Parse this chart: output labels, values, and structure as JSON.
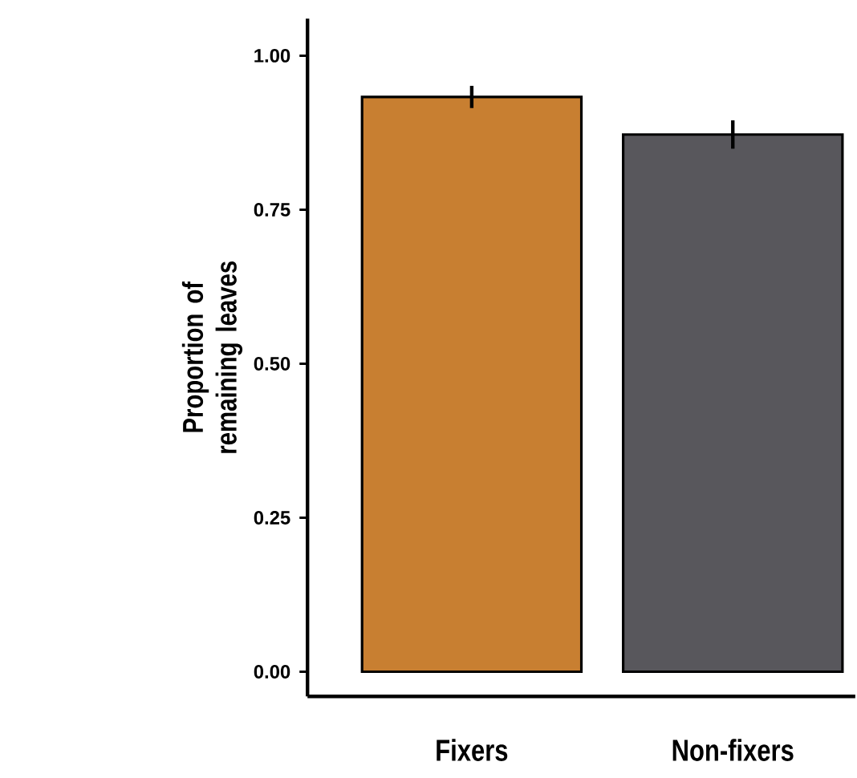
{
  "chart_data": {
    "type": "bar",
    "ylabel": "Proportion of remaining leaves",
    "categories": [
      "Fixers",
      "Non-fixers"
    ],
    "values": [
      0.933,
      0.872
    ],
    "errors": [
      0.018,
      0.023
    ],
    "colors": [
      "#c87f31",
      "#58575c"
    ],
    "ylim": [
      -0.04,
      1.06
    ],
    "yticks": [
      {
        "value": 0,
        "label": "0.00"
      },
      {
        "value": 0.25,
        "label": "0.25"
      },
      {
        "value": 0.5,
        "label": "0.50"
      },
      {
        "value": 0.75,
        "label": "0.75"
      },
      {
        "value": 1,
        "label": "1.00"
      }
    ],
    "grid": false
  }
}
